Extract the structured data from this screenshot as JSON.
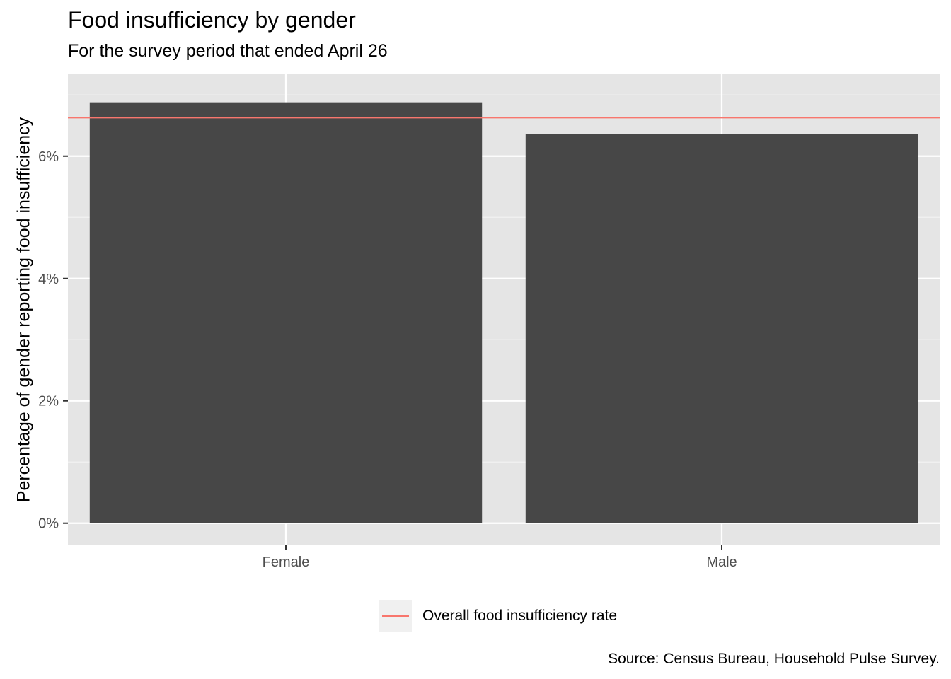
{
  "chart_data": {
    "type": "bar",
    "title": "Food insufficiency by gender",
    "subtitle": "For the survey period that ended April 26",
    "xlabel": "",
    "ylabel": "Percentage of gender reporting food insufficiency",
    "categories": [
      "Female",
      "Male"
    ],
    "values": [
      6.88,
      6.36
    ],
    "ylim": [
      -0.35,
      7.35
    ],
    "yticks": [
      0,
      2,
      4,
      6
    ],
    "ytick_labels": [
      "0%",
      "2%",
      "4%",
      "6%"
    ],
    "reference_line": {
      "label": "Overall food insufficiency rate",
      "value": 6.63,
      "color": "#f8766d"
    },
    "bar_color": "#474747",
    "panel_color": "#e5e5e5",
    "grid": true,
    "legend_position": "bottom",
    "caption": "Source: Census Bureau, Household Pulse Survey."
  }
}
